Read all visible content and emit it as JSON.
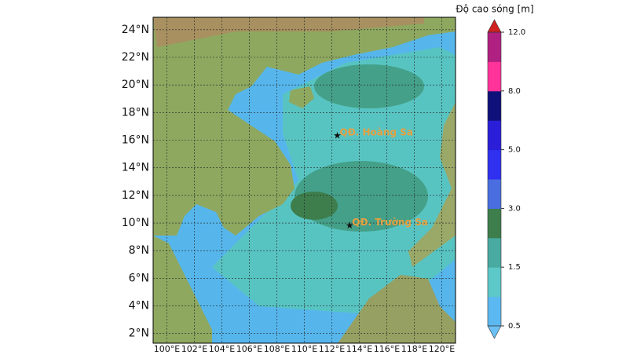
{
  "map": {
    "xlim": [
      99,
      121
    ],
    "ylim": [
      1.3,
      24.9
    ],
    "xticks": [
      {
        "value": 100,
        "label": "100°E"
      },
      {
        "value": 102,
        "label": "102°E"
      },
      {
        "value": 104,
        "label": "104°E"
      },
      {
        "value": 106,
        "label": "106°E"
      },
      {
        "value": 108,
        "label": "108°E"
      },
      {
        "value": 110,
        "label": "110°E"
      },
      {
        "value": 112,
        "label": "112°E"
      },
      {
        "value": 114,
        "label": "114°E"
      },
      {
        "value": 116,
        "label": "116°E"
      },
      {
        "value": 118,
        "label": "118°E"
      },
      {
        "value": 120,
        "label": "120°E"
      }
    ],
    "yticks": [
      {
        "value": 2,
        "label": "2°N"
      },
      {
        "value": 4,
        "label": "4°N"
      },
      {
        "value": 6,
        "label": "6°N"
      },
      {
        "value": 8,
        "label": "8°N"
      },
      {
        "value": 10,
        "label": "10°N"
      },
      {
        "value": 12,
        "label": "12°N"
      },
      {
        "value": 14,
        "label": "14°N"
      },
      {
        "value": 16,
        "label": "16°N"
      },
      {
        "value": 18,
        "label": "18°N"
      },
      {
        "value": 20,
        "label": "20°N"
      },
      {
        "value": 22,
        "label": "22°N"
      },
      {
        "value": 24,
        "label": "24°N"
      }
    ],
    "places": [
      {
        "label": "QĐ. Hoàng Sa",
        "lon": 112.4,
        "lat": 16.3
      },
      {
        "label": "QĐ. Trường Sa",
        "lon": 113.3,
        "lat": 9.8
      }
    ]
  },
  "colorbar": {
    "title": "Độ cao sóng [m]",
    "levels": [
      0.5,
      1,
      1.5,
      2,
      3,
      4,
      5,
      6,
      8,
      10,
      12
    ],
    "colors": [
      "#5cb8f0",
      "#5cc8c8",
      "#48aaa0",
      "#3e7e4c",
      "#4a6ee0",
      "#3030f0",
      "#2a1ed8",
      "#10107a",
      "#ff3399",
      "#b02080"
    ],
    "under_color": "#6ac0f4",
    "over_color": "#d02020",
    "ticks": [
      0.5,
      1.5,
      {
        "value": 3,
        "label": "3.0"
      },
      {
        "value": 5,
        "label": "5.0"
      },
      {
        "value": 8,
        "label": "8.0"
      },
      {
        "value": 12,
        "label": "12.0"
      }
    ]
  }
}
